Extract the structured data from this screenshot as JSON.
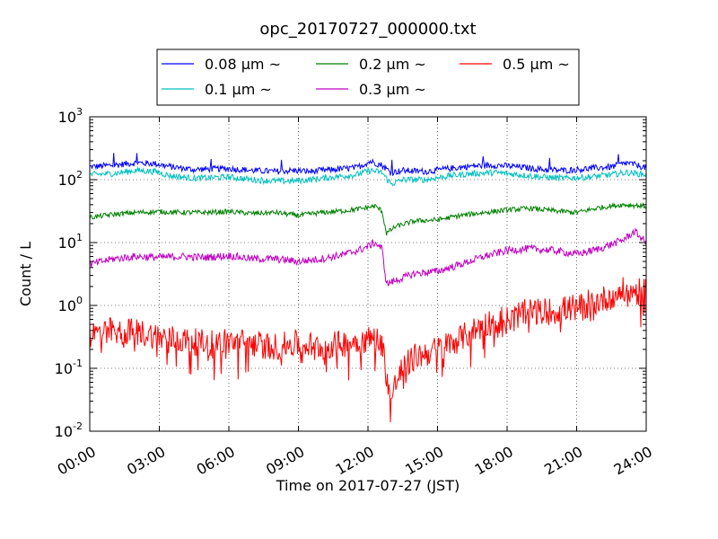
{
  "chart_data": {
    "type": "line",
    "title": "opc_20170727_000000.txt",
    "xlabel": "Time on 2017-07-27 (JST)",
    "ylabel": "Count / L",
    "xlim": [
      0,
      24
    ],
    "ylim": [
      0.01,
      1000
    ],
    "y_scale": "log",
    "grid": true,
    "legend_position": "top-center",
    "x_ticks": [
      {
        "value": 0,
        "label": "00:00"
      },
      {
        "value": 3,
        "label": "03:00"
      },
      {
        "value": 6,
        "label": "06:00"
      },
      {
        "value": 9,
        "label": "09:00"
      },
      {
        "value": 12,
        "label": "12:00"
      },
      {
        "value": 15,
        "label": "15:00"
      },
      {
        "value": 18,
        "label": "18:00"
      },
      {
        "value": 21,
        "label": "21:00"
      },
      {
        "value": 24,
        "label": "24:00"
      }
    ],
    "y_ticks": [
      {
        "value": 0.01,
        "base": "10",
        "exp": "-2"
      },
      {
        "value": 0.1,
        "base": "10",
        "exp": "-1"
      },
      {
        "value": 1,
        "base": "10",
        "exp": "0"
      },
      {
        "value": 10,
        "base": "10",
        "exp": "1"
      },
      {
        "value": 100,
        "base": "10",
        "exp": "2"
      },
      {
        "value": 1000,
        "base": "10",
        "exp": "3"
      }
    ],
    "series": [
      {
        "name": "0.08 μm ~",
        "color": "#0000ff",
        "x": [
          0,
          1,
          2,
          2.8,
          3.5,
          4.5,
          6,
          7,
          8,
          8.8,
          9.5,
          10.5,
          11.5,
          12.1,
          12.6,
          13,
          13.5,
          14.5,
          15.5,
          16.5,
          17.5,
          18.5,
          19.5,
          20.5,
          21.5,
          22.5,
          23.2,
          24
        ],
        "y": [
          160,
          170,
          185,
          180,
          160,
          145,
          150,
          140,
          135,
          140,
          135,
          145,
          155,
          195,
          170,
          130,
          140,
          135,
          150,
          165,
          170,
          160,
          145,
          140,
          150,
          160,
          185,
          155
        ]
      },
      {
        "name": "0.1 μm ~",
        "color": "#00bfbf",
        "x": [
          0,
          1,
          2,
          2.8,
          3.5,
          4.5,
          6,
          7,
          8,
          8.8,
          9.5,
          10.5,
          11.5,
          12.1,
          12.6,
          13,
          13.5,
          14.5,
          15.5,
          16.5,
          17.5,
          18.5,
          19.5,
          20.5,
          21.5,
          22.5,
          23.2,
          24
        ],
        "y": [
          120,
          125,
          140,
          135,
          115,
          105,
          110,
          100,
          95,
          95,
          100,
          110,
          120,
          140,
          130,
          85,
          100,
          100,
          115,
          125,
          130,
          120,
          110,
          105,
          110,
          120,
          130,
          120
        ]
      },
      {
        "name": "0.2 μm ~",
        "color": "#008000",
        "x": [
          0,
          1,
          2,
          3,
          4,
          5,
          6,
          7,
          8,
          9,
          10,
          11,
          11.8,
          12.3,
          12.6,
          12.8,
          13.2,
          14,
          15,
          16,
          17,
          18,
          19,
          20,
          21,
          22,
          23,
          24
        ],
        "y": [
          25,
          28,
          30,
          31,
          30,
          30,
          31,
          29,
          30,
          27,
          30,
          32,
          35,
          38,
          32,
          14,
          18,
          22,
          23,
          27,
          30,
          33,
          35,
          32,
          30,
          36,
          40,
          38
        ]
      },
      {
        "name": "0.3 μm ~",
        "color": "#bf00bf",
        "x": [
          0,
          1,
          2,
          3,
          4,
          5,
          6,
          7,
          8,
          9,
          10,
          11,
          11.8,
          12.3,
          12.6,
          12.8,
          13.2,
          14,
          15,
          16,
          17,
          18,
          19,
          20,
          21,
          22,
          23,
          23.5,
          24
        ],
        "y": [
          4.5,
          5.5,
          6,
          5.8,
          6,
          5.8,
          6.2,
          5.5,
          5.5,
          5,
          5.5,
          6.5,
          8,
          10,
          8,
          2.2,
          2.5,
          3.2,
          3.5,
          4.5,
          6,
          7.5,
          8,
          7.5,
          6.5,
          8,
          11,
          15,
          10
        ]
      },
      {
        "name": "0.5 μm ~",
        "color": "#ff0000",
        "x": [
          0,
          1,
          2,
          3,
          4,
          5,
          6,
          7,
          8,
          9,
          10,
          11,
          11.8,
          12.3,
          12.6,
          12.8,
          13,
          13.2,
          13.5,
          14,
          15,
          16,
          17,
          18,
          19,
          20,
          21,
          22,
          23,
          24
        ],
        "y": [
          0.35,
          0.4,
          0.38,
          0.32,
          0.28,
          0.25,
          0.27,
          0.25,
          0.22,
          0.25,
          0.22,
          0.25,
          0.28,
          0.3,
          0.25,
          0.08,
          0.03,
          0.06,
          0.1,
          0.15,
          0.2,
          0.3,
          0.5,
          0.65,
          0.8,
          0.8,
          0.95,
          1.2,
          1.7,
          1.6
        ]
      }
    ]
  }
}
